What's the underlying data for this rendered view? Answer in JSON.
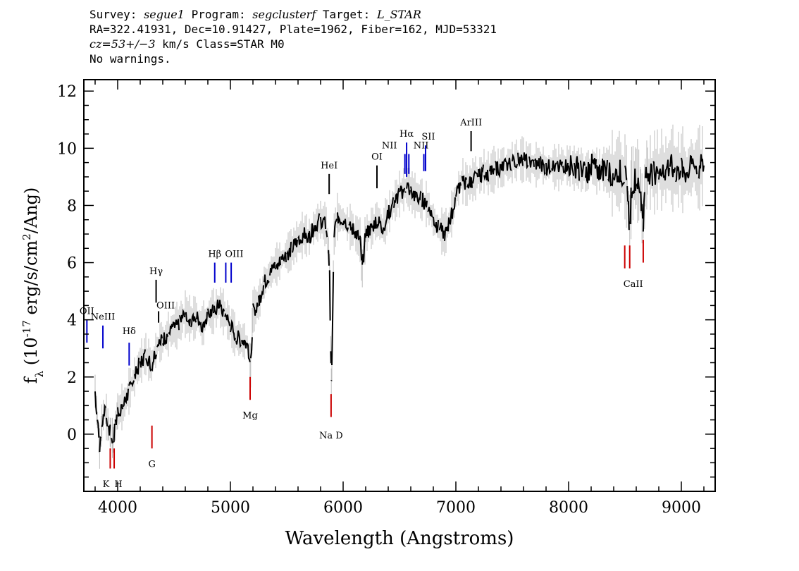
{
  "header": {
    "line1": {
      "survey_label": "Survey: ",
      "survey": "segue1",
      "program_label": " Program: ",
      "program": "segclusterf",
      "target_label": " Target: ",
      "target": "L_STAR"
    },
    "line2": "RA=322.41931, Dec=10.91427, Plate=1962, Fiber=162, MJD=53321",
    "line3": {
      "cz": "cz=53+/−3",
      "rest": " km/s Class=STAR M0"
    },
    "line4": "No warnings."
  },
  "chart_data": {
    "type": "line",
    "xlabel": "Wavelength (Angstroms)",
    "ylabel": "f_λ (10^-17 erg/s/cm^2/Ang)",
    "xlim": [
      3700,
      9300
    ],
    "ylim": [
      -2,
      12.4
    ],
    "xticks": [
      4000,
      5000,
      6000,
      7000,
      8000,
      9000
    ],
    "yticks": [
      0,
      2,
      4,
      6,
      8,
      10,
      12
    ],
    "grid": false,
    "series": [
      {
        "color": "#000000",
        "x": [
          3800,
          3820,
          3840,
          3860,
          3880,
          3900,
          3920,
          3940,
          3960,
          3980,
          4000,
          4050,
          4100,
          4150,
          4200,
          4250,
          4300,
          4350,
          4400,
          4450,
          4500,
          4550,
          4600,
          4650,
          4700,
          4750,
          4800,
          4850,
          4900,
          4950,
          5000,
          5050,
          5100,
          5150,
          5180,
          5200,
          5250,
          5300,
          5350,
          5400,
          5450,
          5500,
          5550,
          5600,
          5650,
          5700,
          5750,
          5800,
          5850,
          5870,
          5880,
          5890,
          5895,
          5900,
          5920,
          5950,
          6000,
          6050,
          6100,
          6150,
          6170,
          6200,
          6250,
          6300,
          6350,
          6400,
          6450,
          6500,
          6550,
          6563,
          6600,
          6650,
          6700,
          6750,
          6800,
          6850,
          6900,
          6950,
          7000,
          7050,
          7100,
          7150,
          7200,
          7250,
          7300,
          7350,
          7400,
          7450,
          7500,
          7550,
          7600,
          7650,
          7700,
          7750,
          7800,
          7850,
          7900,
          7950,
          8000,
          8050,
          8100,
          8150,
          8200,
          8250,
          8300,
          8350,
          8400,
          8450,
          8500,
          8520,
          8542,
          8560,
          8600,
          8640,
          8662,
          8680,
          8700,
          8750,
          8800,
          8850,
          8900,
          8950,
          9000,
          9050,
          9100,
          9150,
          9200
        ],
        "y": [
          1.5,
          0.5,
          -0.5,
          0.4,
          0.8,
          0.6,
          0.2,
          0.0,
          -0.2,
          0.3,
          0.8,
          1.0,
          1.5,
          2.0,
          2.5,
          2.8,
          2.4,
          3.1,
          3.3,
          3.5,
          3.7,
          3.9,
          4.2,
          4.0,
          4.1,
          3.8,
          4.2,
          4.3,
          4.5,
          4.2,
          3.8,
          3.4,
          3.3,
          3.2,
          2.4,
          4.3,
          4.6,
          5.3,
          5.6,
          5.9,
          6.1,
          6.3,
          6.5,
          6.8,
          7.0,
          6.9,
          7.3,
          7.5,
          7.3,
          6.5,
          5.5,
          3.0,
          1.6,
          2.5,
          7.0,
          7.6,
          7.5,
          7.3,
          7.1,
          6.8,
          5.8,
          7.0,
          7.2,
          7.5,
          7.2,
          7.7,
          8.1,
          8.4,
          8.6,
          8.7,
          8.5,
          8.3,
          8.2,
          8.0,
          7.5,
          7.2,
          7.0,
          7.5,
          8.3,
          8.9,
          8.7,
          8.9,
          9.0,
          9.2,
          9.1,
          9.3,
          9.3,
          9.4,
          9.5,
          9.6,
          9.6,
          9.5,
          9.4,
          9.5,
          9.3,
          9.4,
          9.3,
          9.4,
          9.4,
          9.3,
          9.3,
          9.1,
          9.4,
          9.2,
          9.3,
          9.2,
          9.1,
          9.2,
          9.0,
          8.5,
          7.2,
          8.7,
          9.0,
          8.5,
          7.3,
          8.8,
          9.2,
          9.1,
          9.3,
          9.2,
          9.4,
          9.2,
          9.3,
          9.1,
          9.4,
          9.3,
          9.4
        ]
      }
    ],
    "noise_color": "#bdbdbd",
    "lines": [
      {
        "label": "OII",
        "x": 3727,
        "y1": 3.2,
        "y2": 4.0,
        "ly": 4.1,
        "color": "#0000cc",
        "pos": "above"
      },
      {
        "label": "NeIII",
        "x": 3869,
        "y1": 3.0,
        "y2": 3.8,
        "ly": 3.9,
        "color": "#0000cc",
        "pos": "above"
      },
      {
        "label": "Hδ",
        "x": 4102,
        "y1": 2.4,
        "y2": 3.2,
        "ly": 3.4,
        "color": "#0000cc",
        "pos": "above"
      },
      {
        "label": "Hγ",
        "x": 4341,
        "y1": 4.6,
        "y2": 5.4,
        "ly": 5.5,
        "color": "#000000",
        "pos": "above"
      },
      {
        "label": "OIII",
        "x": 4363,
        "y1": 3.9,
        "y2": 4.3,
        "ly": 4.3,
        "color": "#000000",
        "pos": "above",
        "dx": 10
      },
      {
        "label": "Hβ",
        "x": 4861,
        "y1": 5.3,
        "y2": 6.0,
        "ly": 6.1,
        "color": "#0000cc",
        "pos": "above"
      },
      {
        "label": "OIII",
        "x": 4959,
        "y1": 5.3,
        "y2": 6.0,
        "ly": 6.1,
        "color": "#0000cc",
        "pos": "above",
        "dx": 12
      },
      {
        "label": "",
        "x": 5007,
        "y1": 5.3,
        "y2": 6.0,
        "ly": 6.1,
        "color": "#0000cc",
        "pos": "above"
      },
      {
        "label": "HeI",
        "x": 5876,
        "y1": 8.4,
        "y2": 9.1,
        "ly": 9.2,
        "color": "#000000",
        "pos": "above"
      },
      {
        "label": "OI",
        "x": 6300,
        "y1": 8.6,
        "y2": 9.4,
        "ly": 9.5,
        "color": "#000000",
        "pos": "above"
      },
      {
        "label": "NII",
        "x": 6548,
        "y1": 9.1,
        "y2": 9.8,
        "ly": 9.9,
        "color": "#0000cc",
        "pos": "above",
        "dx": -22
      },
      {
        "label": "Hα",
        "x": 6563,
        "y1": 9.0,
        "y2": 10.2,
        "ly": 10.3,
        "color": "#0000cc",
        "pos": "above"
      },
      {
        "label": "",
        "x": 6583,
        "y1": 9.1,
        "y2": 9.8,
        "ly": 9.9,
        "color": "#0000cc",
        "pos": "above"
      },
      {
        "label": "NII",
        "x": 6716,
        "y1": 9.2,
        "y2": 9.8,
        "ly": 9.9,
        "color": "#0000cc",
        "pos": "above",
        "dx": -4
      },
      {
        "label": "SII",
        "x": 6731,
        "y1": 9.2,
        "y2": 10.1,
        "ly": 10.2,
        "color": "#0000cc",
        "pos": "above",
        "dx": 4
      },
      {
        "label": "ArIII",
        "x": 7135,
        "y1": 9.9,
        "y2": 10.6,
        "ly": 10.7,
        "color": "#000000",
        "pos": "above"
      },
      {
        "label": "Mg",
        "x": 5175,
        "y1": 2.0,
        "y2": 1.2,
        "ly": 0.8,
        "color": "#cc0000",
        "pos": "below"
      },
      {
        "label": "Na D",
        "x": 5893,
        "y1": 1.4,
        "y2": 0.6,
        "ly": 0.1,
        "color": "#cc0000",
        "pos": "below"
      },
      {
        "label": "G",
        "x": 4304,
        "y1": 0.3,
        "y2": -0.5,
        "ly": -0.9,
        "color": "#cc0000",
        "pos": "below"
      },
      {
        "label": "K",
        "x": 3934,
        "y1": -0.5,
        "y2": -1.2,
        "ly": -1.6,
        "color": "#cc0000",
        "pos": "below",
        "dx": -6
      },
      {
        "label": "H",
        "x": 3969,
        "y1": -0.5,
        "y2": -1.2,
        "ly": -1.6,
        "color": "#cc0000",
        "pos": "below",
        "dx": 6
      },
      {
        "label": "CaII",
        "x": 8498,
        "y1": 6.6,
        "y2": 5.8,
        "ly": 5.4,
        "color": "#cc0000",
        "pos": "below",
        "dx": 12
      },
      {
        "label": "",
        "x": 8542,
        "y1": 6.6,
        "y2": 5.8,
        "ly": 5.4,
        "color": "#cc0000",
        "pos": "below"
      },
      {
        "label": "",
        "x": 8662,
        "y1": 6.8,
        "y2": 6.0,
        "ly": 5.6,
        "color": "#cc0000",
        "pos": "below"
      }
    ]
  }
}
